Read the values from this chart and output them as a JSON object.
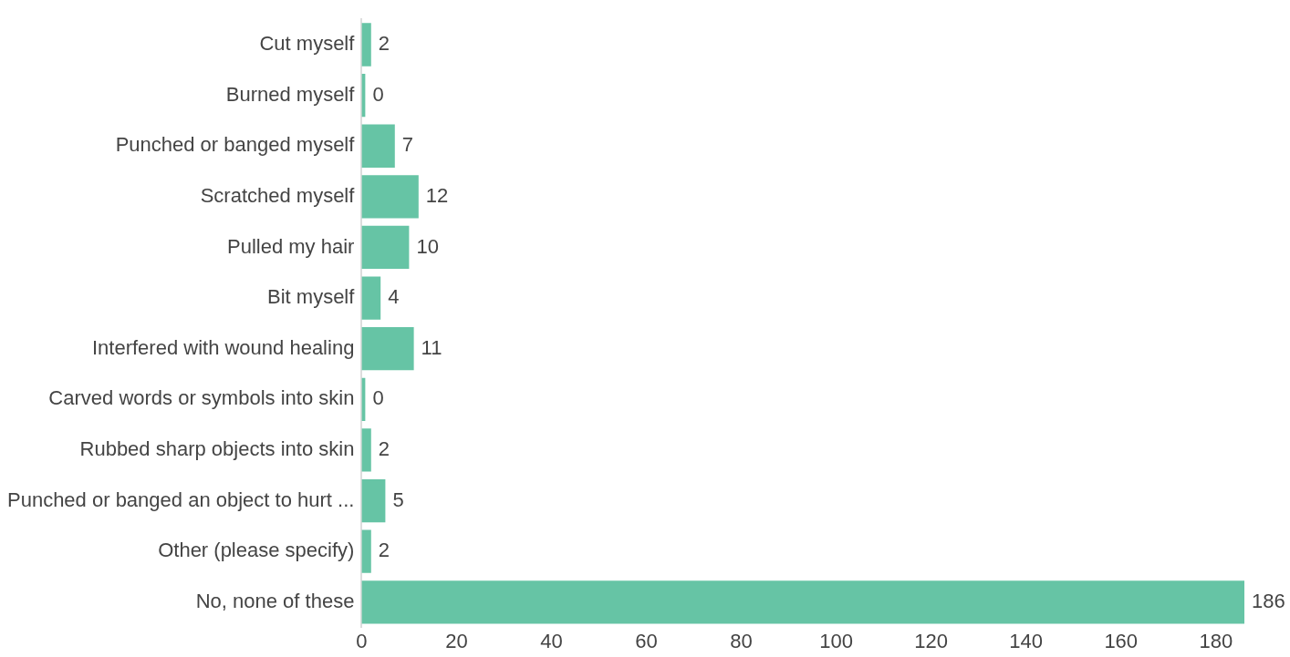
{
  "chart_data": {
    "type": "bar",
    "orientation": "horizontal",
    "categories": [
      "Cut myself",
      "Burned myself",
      "Punched or banged myself",
      "Scratched myself",
      "Pulled my hair",
      "Bit myself",
      "Interfered with wound healing",
      "Carved words or symbols into skin",
      "Rubbed sharp objects into skin",
      "Punched or banged an object to hurt ...",
      "Other (please specify)",
      "No, none of these"
    ],
    "values": [
      2,
      0,
      7,
      12,
      10,
      4,
      11,
      0,
      2,
      5,
      2,
      186
    ],
    "color": "#66c4a5",
    "xticks": [
      0,
      20,
      40,
      60,
      80,
      100,
      120,
      140,
      160,
      180
    ],
    "xlim": [
      0,
      186
    ],
    "data_labels": true,
    "grid": false,
    "legend": false
  }
}
